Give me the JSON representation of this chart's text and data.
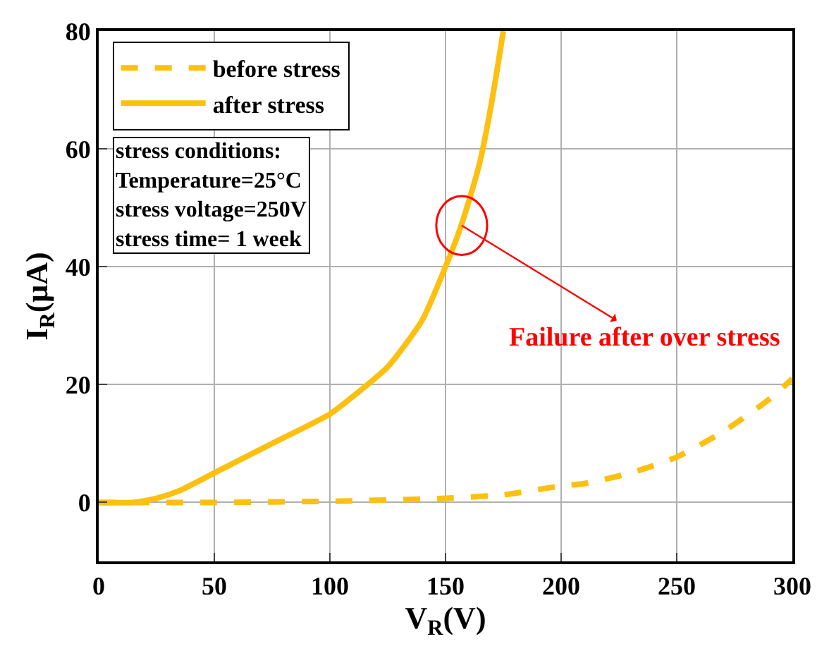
{
  "chart_data": {
    "type": "line",
    "xlabel": "V$_{R}$(V)",
    "ylabel": "I$_{R}$(μA)",
    "xlim": [
      0,
      300
    ],
    "xticks": [
      0,
      50,
      100,
      150,
      200,
      250,
      300
    ],
    "ylim": [
      -10,
      80
    ],
    "yticks": [
      0,
      20,
      40,
      60,
      80
    ],
    "grid": true,
    "legend": "top left",
    "marker": "none",
    "series": [
      {
        "name": "before stress",
        "color": "#fdc010",
        "line_style": "dashed",
        "x": [
          0,
          25,
          50,
          100,
          150,
          175,
          200,
          210,
          230,
          250,
          270,
          290,
          300
        ],
        "values": [
          0,
          0,
          0,
          0.2,
          0.7,
          1.3,
          2.8,
          3.2,
          5,
          7.7,
          12,
          17.5,
          21
        ]
      },
      {
        "name": "after stress",
        "color": "#fdc010",
        "line_style": "solid",
        "x": [
          0,
          15,
          25,
          35,
          50,
          75,
          100,
          110,
          125,
          140,
          150,
          155,
          160,
          165,
          170,
          175
        ],
        "values": [
          0,
          0,
          0.7,
          2,
          5,
          10,
          15,
          18,
          23,
          31,
          40,
          45,
          51,
          58,
          68,
          80
        ]
      }
    ],
    "annotations": [
      "stress conditions:",
      "Temperature=25°C",
      "stress voltage=250V",
      "stress time= 1 week",
      {
        "text": "Failure after over stress",
        "x": 157,
        "y": 47
      }
    ]
  }
}
